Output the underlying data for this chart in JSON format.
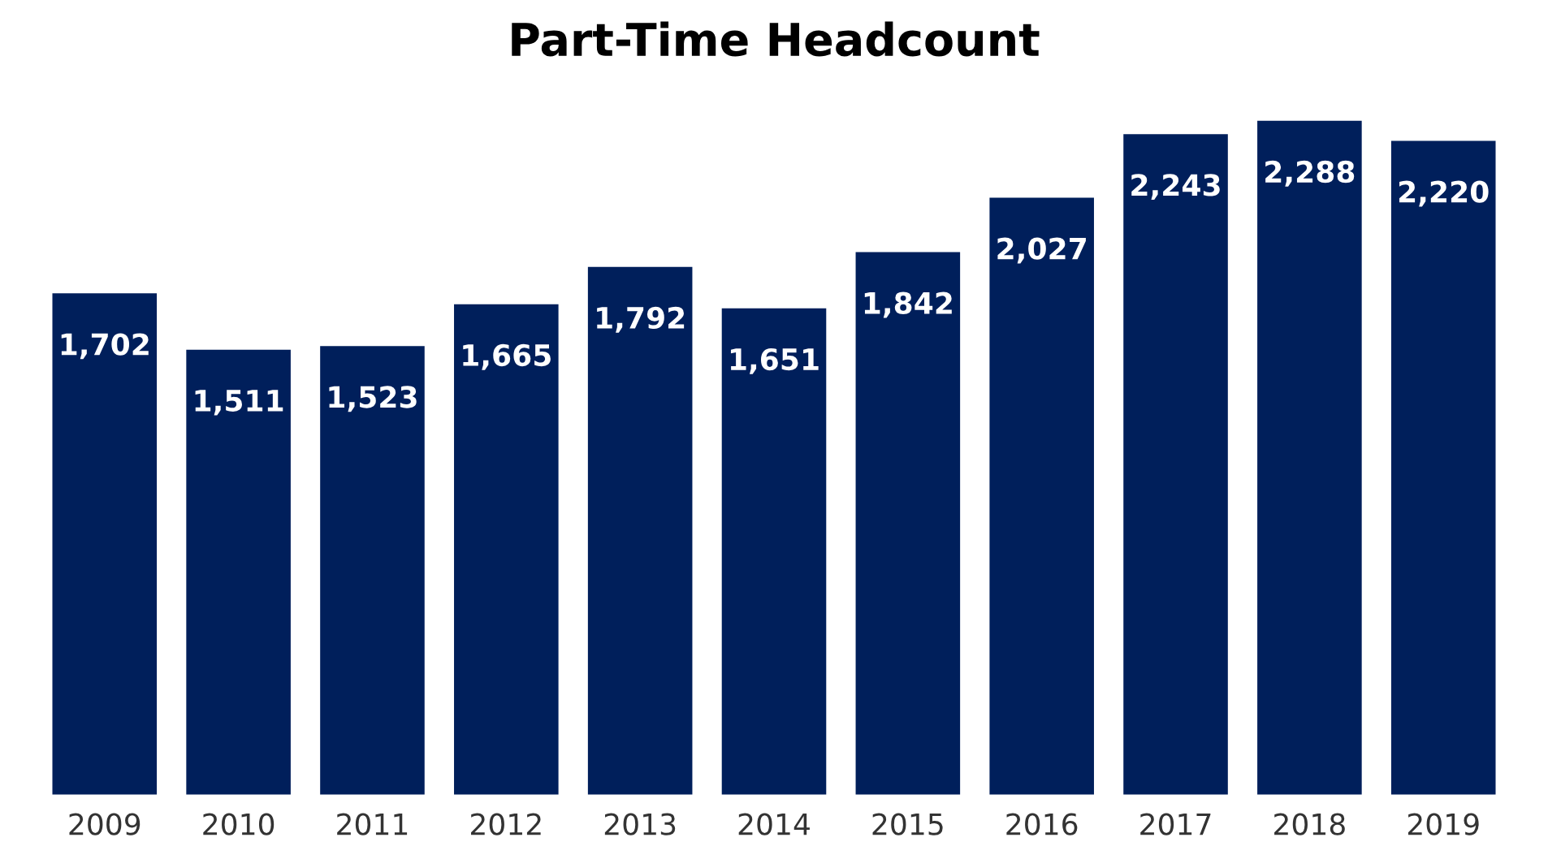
{
  "chart_data": {
    "type": "bar",
    "title": "Part-Time Headcount",
    "categories": [
      "2009",
      "2010",
      "2011",
      "2012",
      "2013",
      "2014",
      "2015",
      "2016",
      "2017",
      "2018",
      "2019"
    ],
    "values": [
      1702,
      1511,
      1523,
      1665,
      1792,
      1651,
      1842,
      2027,
      2243,
      2288,
      2220
    ],
    "color": "#001f5b",
    "value_labels": [
      "1,702",
      "1,511",
      "1,523",
      "1,665",
      "1,792",
      "1,651",
      "1,842",
      "2,027",
      "2,243",
      "2,288",
      "2,220"
    ],
    "grid": false,
    "legend": false
  }
}
